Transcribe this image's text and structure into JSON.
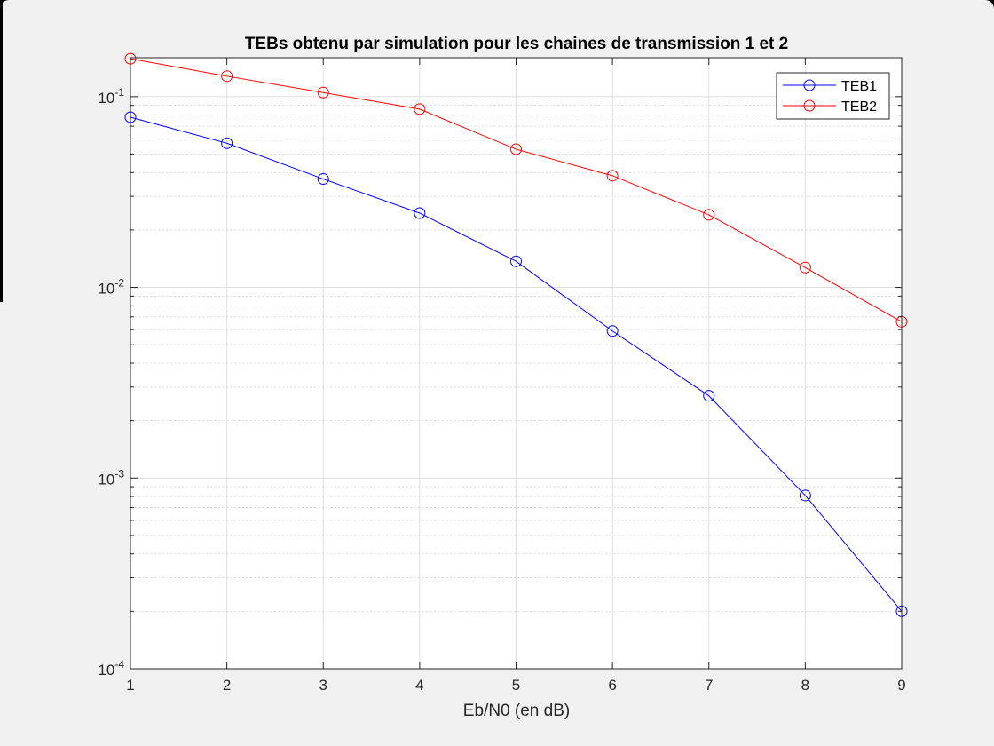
{
  "chart_data": {
    "type": "line",
    "title": "TEBs obtenu par simulation pour les chaines de transmission 1 et 2",
    "xlabel": "Eb/N0 (en dB)",
    "ylabel": "",
    "x": [
      1,
      2,
      3,
      4,
      5,
      6,
      7,
      8,
      9
    ],
    "xlim": [
      1,
      9
    ],
    "ylim": [
      0.0001,
      0.16
    ],
    "yscale": "log",
    "grid": true,
    "legend_position": "top-right",
    "x_ticks": [
      "1",
      "2",
      "3",
      "4",
      "5",
      "6",
      "7",
      "8",
      "9"
    ],
    "y_ticks": [
      {
        "base": "10",
        "exp": "-1",
        "value": 0.1
      },
      {
        "base": "10",
        "exp": "-2",
        "value": 0.01
      },
      {
        "base": "10",
        "exp": "-3",
        "value": 0.001
      },
      {
        "base": "10",
        "exp": "-4",
        "value": 0.0001
      }
    ],
    "series": [
      {
        "name": "TEB1",
        "color": "#0000ff",
        "marker": "circle",
        "values": [
          0.078,
          0.057,
          0.037,
          0.0245,
          0.0137,
          0.0059,
          0.0027,
          0.00081,
          0.0002
        ]
      },
      {
        "name": "TEB2",
        "color": "#ff0000",
        "marker": "circle",
        "values": [
          0.158,
          0.128,
          0.105,
          0.086,
          0.053,
          0.0385,
          0.024,
          0.0127,
          0.0066
        ]
      }
    ]
  }
}
